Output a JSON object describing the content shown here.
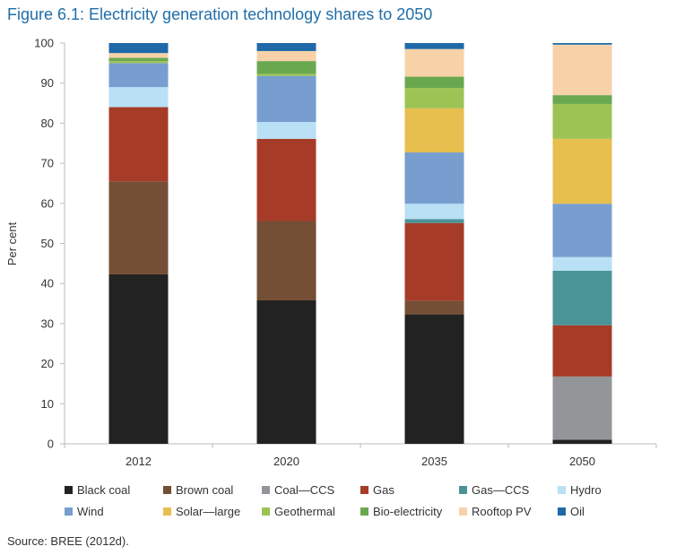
{
  "title": "Figure 6.1: Electricity generation technology shares to 2050",
  "source": "Source: BREE (2012d).",
  "chart_data": {
    "type": "bar",
    "stacked": true,
    "title": "Figure 6.1: Electricity generation technology shares to 2050",
    "xlabel": "",
    "ylabel": "Per cent",
    "ylim": [
      0,
      100
    ],
    "yticks": [
      0,
      10,
      20,
      30,
      40,
      50,
      60,
      70,
      80,
      90,
      100
    ],
    "categories": [
      "2012",
      "2020",
      "2035",
      "2050"
    ],
    "grid": false,
    "legend_position": "bottom",
    "series": [
      {
        "name": "Black coal",
        "color": "#222222",
        "values": [
          42.3,
          35.8,
          32.3,
          1.0
        ]
      },
      {
        "name": "Brown coal",
        "color": "#744e35",
        "values": [
          23.2,
          19.8,
          3.4,
          0
        ]
      },
      {
        "name": "Coal—CCS",
        "color": "#939598",
        "values": [
          0,
          0,
          0,
          15.8
        ]
      },
      {
        "name": "Gas",
        "color": "#a63c28",
        "values": [
          18.5,
          20.5,
          19.4,
          12.8
        ]
      },
      {
        "name": "Gas—CCS",
        "color": "#4a9498",
        "values": [
          0,
          0,
          1.0,
          13.6
        ]
      },
      {
        "name": "Hydro",
        "color": "#b9e0f5",
        "values": [
          5.0,
          4.2,
          3.8,
          3.4
        ]
      },
      {
        "name": "Wind",
        "color": "#779ecf",
        "values": [
          6.0,
          11.5,
          12.8,
          13.3
        ]
      },
      {
        "name": "Solar—large",
        "color": "#e7bf4e",
        "values": [
          0,
          0,
          11.0,
          16.2
        ]
      },
      {
        "name": "Geothermal",
        "color": "#9cc354",
        "values": [
          0.5,
          0.5,
          5.1,
          8.7
        ]
      },
      {
        "name": "Bio-electricity",
        "color": "#6aa84f",
        "values": [
          0.8,
          3.2,
          2.8,
          2.2
        ]
      },
      {
        "name": "Rooftop PV",
        "color": "#f7d2a8",
        "values": [
          1.2,
          2.5,
          6.9,
          12.6
        ]
      },
      {
        "name": "Oil",
        "color": "#1f69a8",
        "values": [
          2.5,
          2.0,
          1.5,
          0.4
        ]
      }
    ]
  }
}
